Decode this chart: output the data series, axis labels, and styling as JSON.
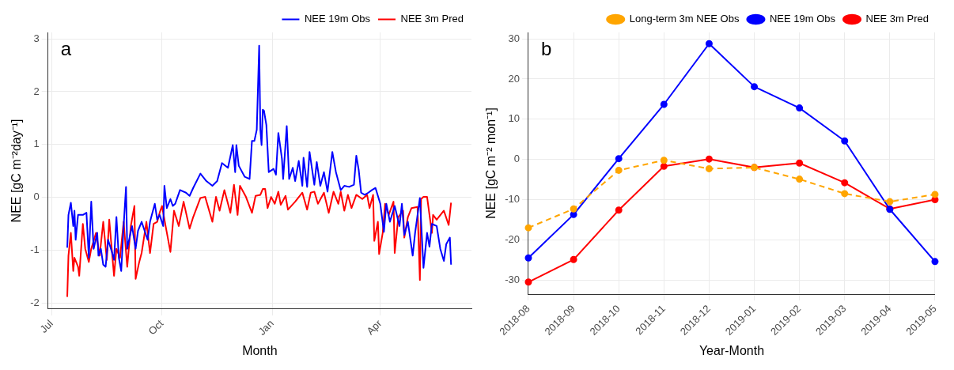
{
  "chart_data": [
    {
      "type": "line",
      "xlabel": "Month",
      "ylabel": "NEE [gC m⁻²day⁻¹]",
      "annotations": [
        "a"
      ],
      "grid": true,
      "legend": "top right",
      "xlim": [
        "2018-06-28",
        "2019-06-16"
      ],
      "xticks": [
        {
          "value": "2018-07-01",
          "label": "Jul"
        },
        {
          "value": "2018-10-01",
          "label": "Oct"
        },
        {
          "value": "2019-01-01",
          "label": "Jan"
        },
        {
          "value": "2019-04-01",
          "label": "Apr"
        }
      ],
      "ylim": [
        -2.11,
        3.12
      ],
      "yticks": [
        -2,
        -1,
        0,
        1,
        2,
        3
      ],
      "series": [
        {
          "name": "NEE 19m Obs",
          "color": "#0000ff",
          "x": [
            "2018-07-14",
            "2018-07-15",
            "2018-07-17",
            "2018-07-19",
            "2018-07-20",
            "2018-07-21",
            "2018-07-23",
            "2018-07-27",
            "2018-07-30",
            "2018-08-01",
            "2018-08-03",
            "2018-08-05",
            "2018-08-08",
            "2018-08-09",
            "2018-08-11",
            "2018-08-13",
            "2018-08-15",
            "2018-08-17",
            "2018-08-20",
            "2018-08-22",
            "2018-08-24",
            "2018-08-26",
            "2018-08-28",
            "2018-08-30",
            "2018-09-01",
            "2018-09-02",
            "2018-09-06",
            "2018-09-09",
            "2018-09-11",
            "2018-09-14",
            "2018-09-19",
            "2018-09-21",
            "2018-09-25",
            "2018-09-27",
            "2018-09-29",
            "2018-10-02",
            "2018-10-03",
            "2018-10-05",
            "2018-10-08",
            "2018-10-10",
            "2018-10-12",
            "2018-10-16",
            "2018-10-21",
            "2018-10-24",
            "2018-10-27",
            "2018-11-02",
            "2018-11-07",
            "2018-11-12",
            "2018-11-16",
            "2018-11-20",
            "2018-11-25",
            "2018-11-29",
            "2018-12-01",
            "2018-12-02",
            "2018-12-04",
            "2018-12-09",
            "2018-12-13",
            "2018-12-15",
            "2018-12-17",
            "2018-12-19",
            "2018-12-21",
            "2018-12-22",
            "2018-12-23",
            "2018-12-24",
            "2018-12-25",
            "2018-12-27",
            "2018-12-29",
            "2019-01-02",
            "2019-01-04",
            "2019-01-06",
            "2019-01-09",
            "2019-01-10",
            "2019-01-13",
            "2019-01-15",
            "2019-01-18",
            "2019-01-20",
            "2019-01-23",
            "2019-01-26",
            "2019-01-27",
            "2019-01-30",
            "2019-02-01",
            "2019-02-05",
            "2019-02-07",
            "2019-02-10",
            "2019-02-13",
            "2019-02-16",
            "2019-02-20",
            "2019-02-23",
            "2019-02-27",
            "2019-03-02",
            "2019-03-06",
            "2019-03-10",
            "2019-03-12",
            "2019-03-14",
            "2019-03-16",
            "2019-03-19",
            "2019-03-22",
            "2019-03-25",
            "2019-03-28",
            "2019-04-01",
            "2019-04-04",
            "2019-04-06",
            "2019-04-09",
            "2019-04-13",
            "2019-04-17",
            "2019-04-19",
            "2019-04-21",
            "2019-04-24",
            "2019-04-28",
            "2019-04-30",
            "2019-05-04",
            "2019-05-07",
            "2019-05-10",
            "2019-05-12",
            "2019-05-14",
            "2019-05-18",
            "2019-05-21",
            "2019-05-24",
            "2019-05-26",
            "2019-05-29",
            "2019-05-30"
          ],
          "values": [
            -0.95,
            -0.33,
            -0.1,
            -0.54,
            -0.25,
            -0.8,
            -0.33,
            -0.33,
            -0.29,
            -1.14,
            -0.08,
            -0.97,
            -0.67,
            -1.1,
            -0.97,
            -1.27,
            -1.31,
            -0.8,
            -1.01,
            -1.18,
            -0.37,
            -1.14,
            -1.39,
            -0.54,
            0.2,
            -0.97,
            -0.54,
            -0.97,
            -0.63,
            -0.46,
            -0.8,
            -0.46,
            -0.12,
            -0.42,
            -0.33,
            -0.54,
            0.22,
            -0.2,
            -0.03,
            -0.16,
            -0.12,
            0.14,
            0.09,
            0.03,
            0.18,
            0.45,
            0.31,
            0.22,
            0.31,
            0.65,
            0.56,
            0.99,
            0.48,
            0.99,
            0.6,
            0.39,
            0.35,
            1.07,
            1.07,
            1.28,
            2.87,
            1.28,
            0.99,
            1.66,
            1.64,
            1.37,
            0.48,
            0.54,
            0.43,
            1.22,
            0.73,
            0.35,
            1.35,
            0.35,
            0.56,
            0.31,
            0.69,
            0.22,
            0.75,
            0.2,
            0.86,
            0.24,
            0.67,
            0.22,
            0.48,
            0.11,
            0.86,
            0.48,
            0.14,
            0.22,
            0.2,
            0.24,
            0.79,
            0.52,
            0.09,
            0.05,
            0.09,
            0.14,
            0.18,
            -0.12,
            -0.65,
            -0.12,
            -0.46,
            -0.16,
            -0.54,
            -0.12,
            -0.71,
            -0.46,
            -1.1,
            -0.67,
            -0.01,
            -1.33,
            -0.67,
            -0.93,
            -0.5,
            -0.54,
            -0.97,
            -1.2,
            -0.88,
            -0.76,
            -1.27
          ]
        },
        {
          "name": "NEE 3m Pred",
          "color": "#ff0000",
          "x": [
            "2018-07-14",
            "2018-07-15",
            "2018-07-17",
            "2018-07-19",
            "2018-07-20",
            "2018-07-23",
            "2018-07-24",
            "2018-07-27",
            "2018-07-29",
            "2018-08-01",
            "2018-08-03",
            "2018-08-07",
            "2018-08-10",
            "2018-08-13",
            "2018-08-16",
            "2018-08-18",
            "2018-08-22",
            "2018-08-24",
            "2018-08-27",
            "2018-08-30",
            "2018-09-02",
            "2018-09-05",
            "2018-09-08",
            "2018-09-09",
            "2018-09-12",
            "2018-09-14",
            "2018-09-18",
            "2018-09-21",
            "2018-09-24",
            "2018-09-27",
            "2018-09-29",
            "2018-10-01",
            "2018-10-04",
            "2018-10-08",
            "2018-10-11",
            "2018-10-15",
            "2018-10-19",
            "2018-10-24",
            "2018-10-27",
            "2018-11-02",
            "2018-11-06",
            "2018-11-12",
            "2018-11-15",
            "2018-11-18",
            "2018-11-22",
            "2018-11-27",
            "2018-11-30",
            "2018-12-03",
            "2018-12-05",
            "2018-12-10",
            "2018-12-15",
            "2018-12-18",
            "2018-12-22",
            "2018-12-24",
            "2018-12-26",
            "2018-12-28",
            "2018-12-31",
            "2019-01-03",
            "2019-01-06",
            "2019-01-08",
            "2019-01-12",
            "2019-01-14",
            "2019-01-20",
            "2019-01-26",
            "2019-01-30",
            "2019-02-02",
            "2019-02-05",
            "2019-02-08",
            "2019-02-13",
            "2019-02-17",
            "2019-02-21",
            "2019-02-25",
            "2019-02-27",
            "2019-03-02",
            "2019-03-05",
            "2019-03-08",
            "2019-03-12",
            "2019-03-17",
            "2019-03-21",
            "2019-03-23",
            "2019-03-26",
            "2019-03-27",
            "2019-03-30",
            "2019-03-31",
            "2019-04-03",
            "2019-04-05",
            "2019-04-08",
            "2019-04-12",
            "2019-04-13",
            "2019-04-16",
            "2019-04-20",
            "2019-04-21",
            "2019-04-24",
            "2019-04-27",
            "2019-05-02",
            "2019-05-04",
            "2019-05-05",
            "2019-05-07",
            "2019-05-10",
            "2019-05-14",
            "2019-05-15",
            "2019-05-18",
            "2019-05-24",
            "2019-05-28",
            "2019-05-30"
          ],
          "values": [
            -1.88,
            -1.1,
            -0.67,
            -1.39,
            -1.14,
            -1.31,
            -1.48,
            -0.5,
            -0.97,
            -1.22,
            -0.97,
            -0.67,
            -1.1,
            -0.46,
            -1.18,
            -0.42,
            -1.48,
            -0.97,
            -1.14,
            -0.46,
            -1.31,
            -0.54,
            -0.16,
            -1.54,
            -1.22,
            -1.05,
            -0.46,
            -1.05,
            -0.5,
            -0.46,
            -0.29,
            -0.16,
            -0.54,
            -1.03,
            -0.25,
            -0.54,
            -0.08,
            -0.59,
            -0.37,
            -0.01,
            0.01,
            -0.46,
            0.01,
            -0.25,
            0.14,
            -0.29,
            0.24,
            -0.33,
            0.22,
            0.01,
            -0.29,
            0.03,
            0.05,
            0.16,
            0.16,
            -0.2,
            0.01,
            -0.12,
            0.11,
            -0.14,
            0.03,
            -0.23,
            -0.08,
            0.09,
            -0.23,
            0.09,
            0.11,
            -0.12,
            0.09,
            -0.29,
            0.11,
            -0.12,
            0.11,
            -0.25,
            0.05,
            -0.2,
            0.05,
            -0.03,
            0.05,
            -0.2,
            0.05,
            -0.82,
            -0.46,
            -1.07,
            -0.67,
            -0.12,
            -0.33,
            -0.08,
            -1.05,
            -0.37,
            -0.25,
            -0.76,
            -0.37,
            -0.2,
            -0.18,
            -1.56,
            -0.03,
            0.01,
            0.01,
            -0.67,
            -0.33,
            -0.42,
            -0.25,
            -0.52,
            -0.1
          ]
        }
      ]
    },
    {
      "type": "line",
      "xlabel": "Year-Month",
      "ylabel": "NEE [gC m⁻² mon⁻¹]",
      "annotations": [
        "b"
      ],
      "grid": true,
      "legend": "top right",
      "marker": "circle",
      "categories": [
        "2018-08",
        "2018-09",
        "2018-10",
        "2018-11",
        "2018-12",
        "2019-01",
        "2019-02",
        "2019-03",
        "2019-04",
        "2019-05"
      ],
      "ylim": [
        -33.5,
        31.6
      ],
      "yticks": [
        -30,
        -20,
        -10,
        0,
        10,
        20,
        30
      ],
      "series": [
        {
          "name": "Long-term 3m NEE Obs",
          "color": "#ffa500",
          "line_style": "dashed",
          "values": [
            -17.0,
            -12.3,
            -2.7,
            -0.2,
            -2.3,
            -2.0,
            -4.9,
            -8.5,
            -10.5,
            -8.7
          ]
        },
        {
          "name": "NEE 19m Obs",
          "color": "#0000ff",
          "values": [
            -24.5,
            -13.7,
            0.2,
            13.7,
            28.8,
            18.1,
            12.8,
            4.6,
            -12.4,
            -25.4
          ]
        },
        {
          "name": "NEE 3m Pred",
          "color": "#ff0000",
          "values": [
            -30.5,
            -24.9,
            -12.6,
            -1.7,
            0.1,
            -2.0,
            -0.9,
            -5.8,
            -12.3,
            -10.0
          ]
        }
      ]
    }
  ]
}
